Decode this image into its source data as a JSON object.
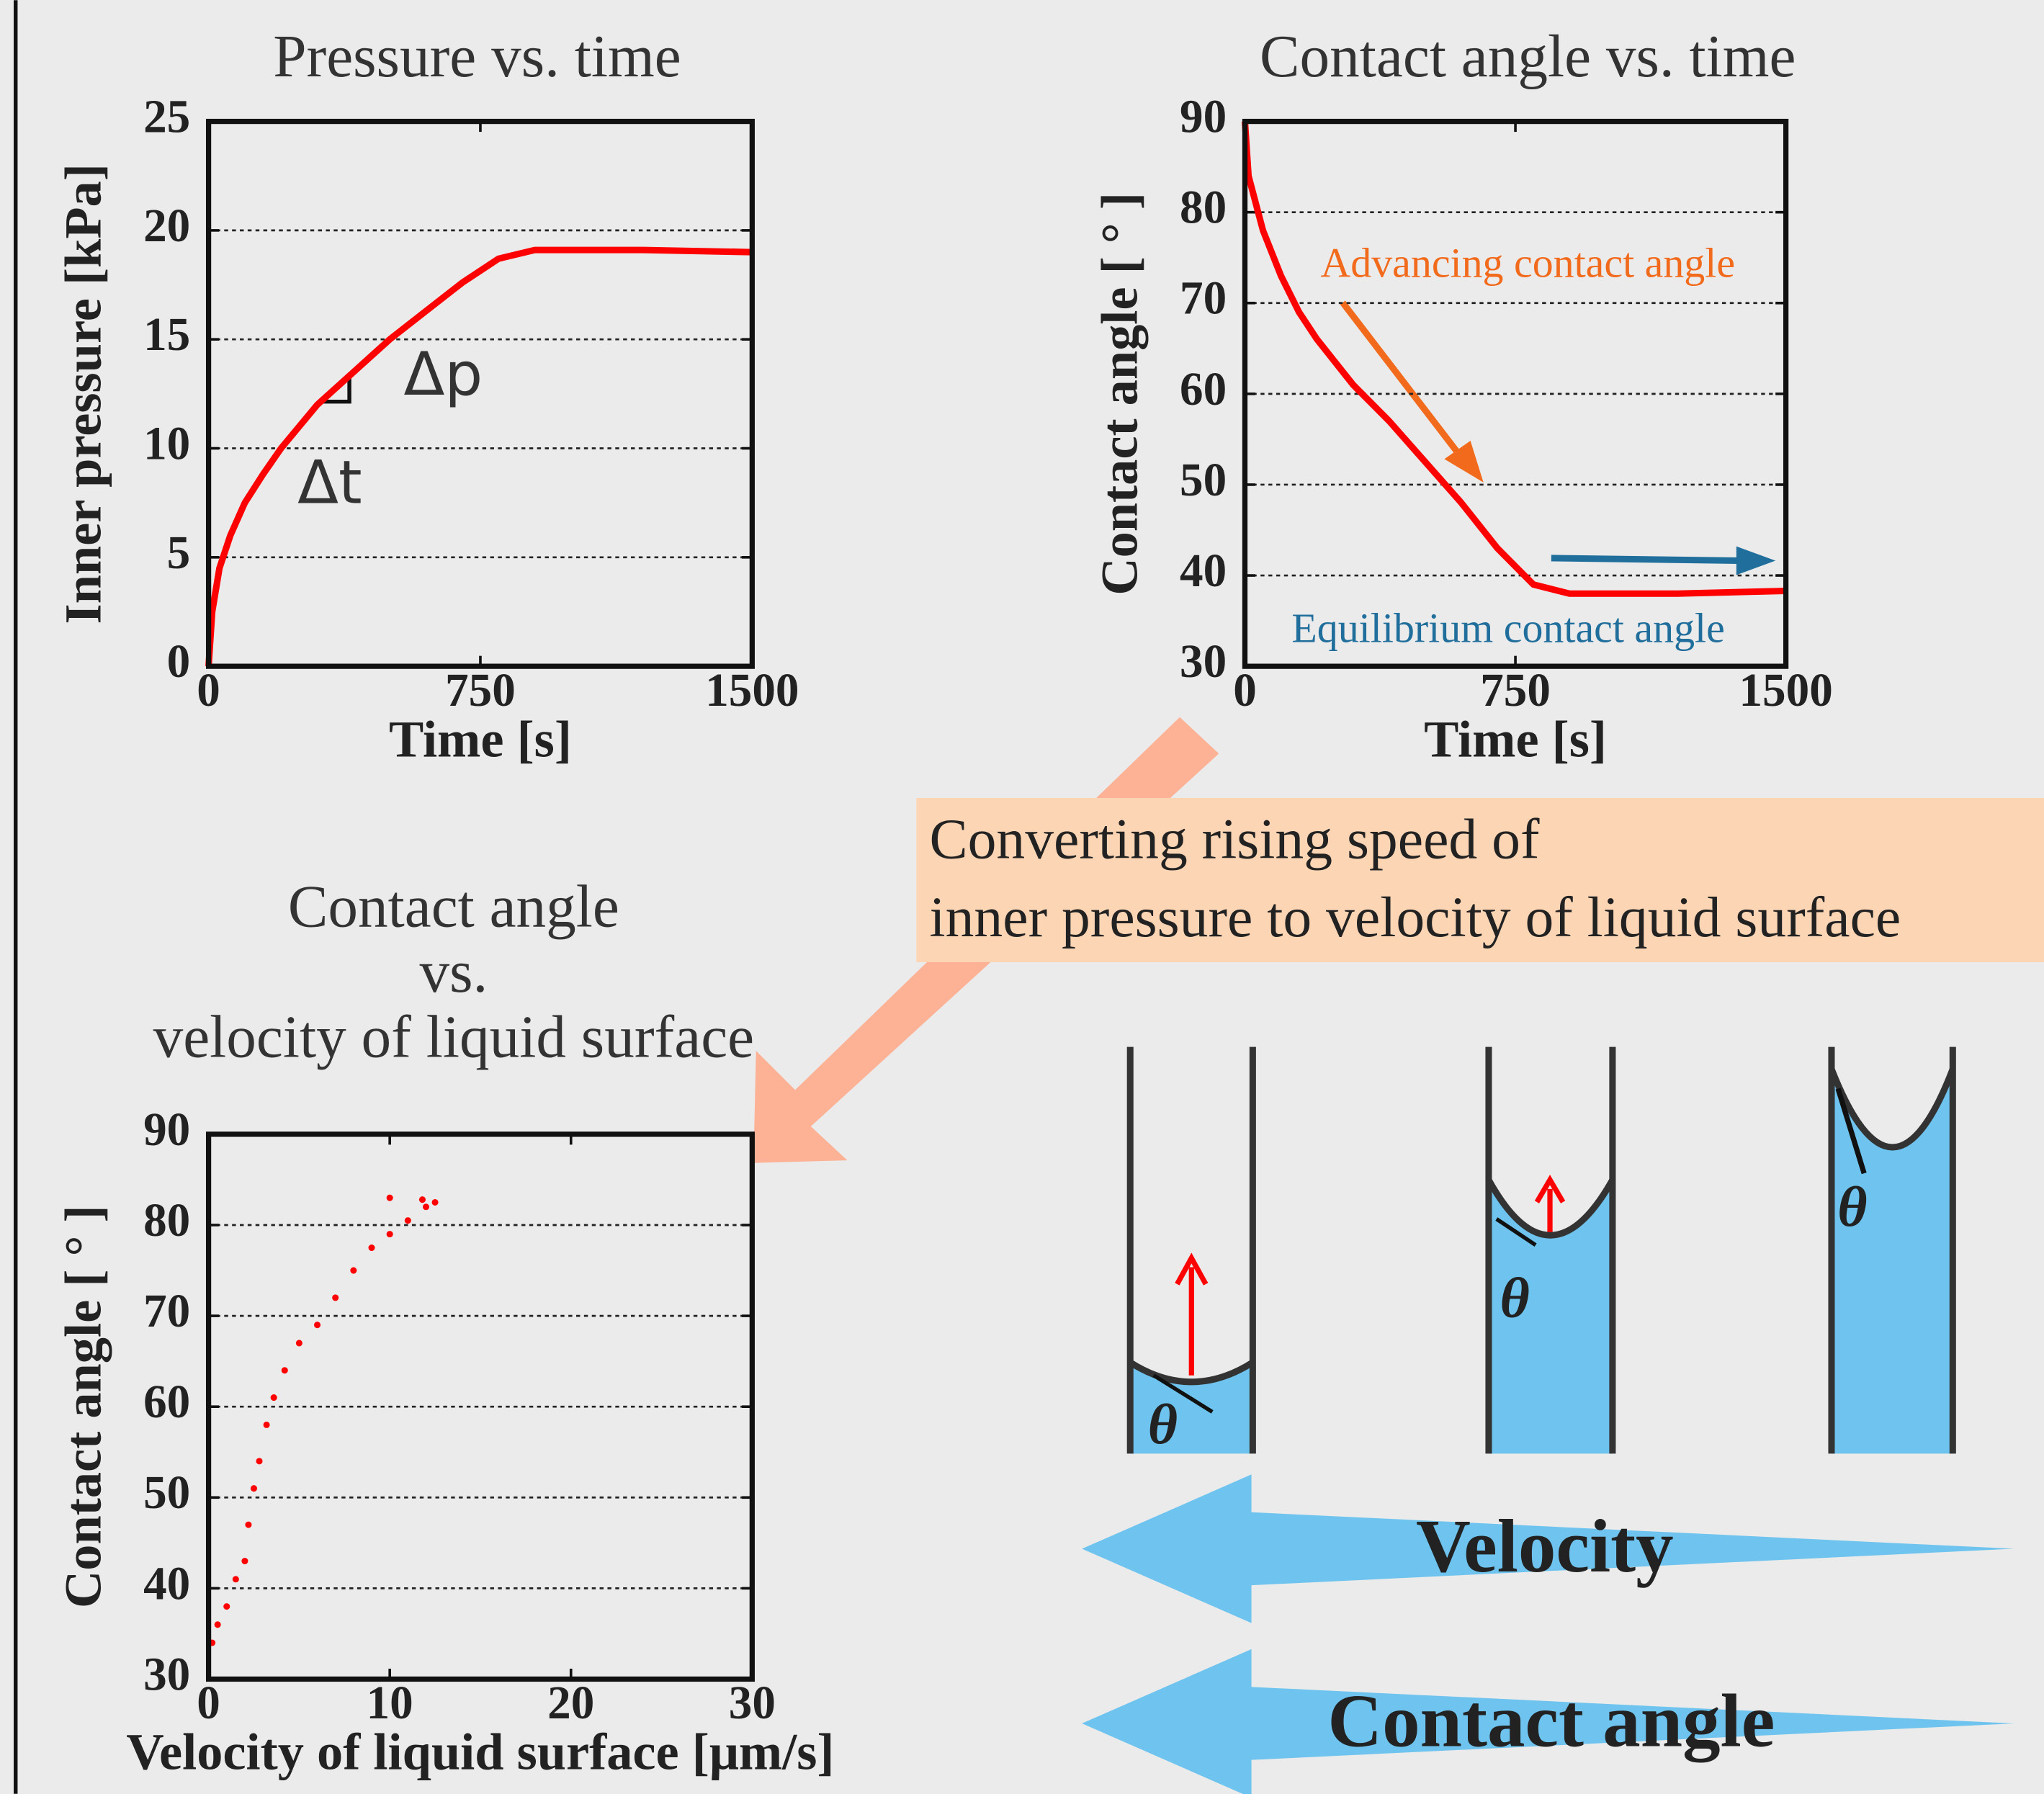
{
  "chart_data": [
    {
      "type": "line",
      "title": "Pressure vs. time",
      "xlabel": "Time [s]",
      "ylabel": "Inner pressure [kPa]",
      "x": [
        0,
        10,
        30,
        60,
        100,
        150,
        200,
        250,
        300,
        400,
        500,
        600,
        700,
        800,
        900,
        1000,
        1200,
        1500
      ],
      "values": [
        0,
        2.5,
        4.5,
        6,
        7.5,
        8.8,
        10,
        11,
        12,
        13.5,
        15,
        16.3,
        17.6,
        18.7,
        19.1,
        19.1,
        19.1,
        19.0
      ],
      "color": "#ff0000",
      "xlim": [
        0,
        1500
      ],
      "xticks": [
        0,
        750,
        1500
      ],
      "ylim": [
        0,
        25
      ],
      "yticks": [
        0,
        5,
        10,
        15,
        20,
        25
      ],
      "grid": true,
      "annotations": [
        {
          "text": "Δp",
          "color": "#333333"
        },
        {
          "text": "Δt",
          "color": "#333333"
        }
      ]
    },
    {
      "type": "line",
      "title": "Contact angle vs. time",
      "xlabel": "Time [s]",
      "ylabel": "Contact angle [ ° ]",
      "x": [
        0,
        10,
        50,
        100,
        150,
        200,
        300,
        400,
        500,
        600,
        700,
        800,
        900,
        1000,
        1200,
        1500
      ],
      "values": [
        90,
        84,
        78,
        73,
        69,
        66,
        61,
        57,
        52.5,
        48,
        43,
        39,
        38,
        38,
        38,
        38.3
      ],
      "color": "#ff0000",
      "xlim": [
        0,
        1500
      ],
      "xticks": [
        0,
        750,
        1500
      ],
      "ylim": [
        30,
        90
      ],
      "yticks": [
        30,
        40,
        50,
        60,
        70,
        80,
        90
      ],
      "grid": true,
      "annotations": [
        {
          "text": "Advancing contact angle",
          "color": "#f26b1d"
        },
        {
          "text": "Equilibrium contact angle",
          "color": "#1f6e9c"
        }
      ]
    },
    {
      "type": "scatter",
      "title": [
        "Contact angle",
        "vs.",
        "velocity of liquid surface"
      ],
      "xlabel": "Velocity of liquid surface [μm/s]",
      "ylabel": "Contact angle [ ° ]",
      "x": [
        0.2,
        0.5,
        1,
        1.5,
        2,
        2.2,
        2.5,
        2.8,
        3.2,
        3.6,
        4.2,
        5,
        6,
        7,
        8,
        9,
        10,
        11,
        12,
        12.5,
        10,
        11.8
      ],
      "values": [
        34,
        36,
        38,
        41,
        43,
        47,
        51,
        54,
        58,
        61,
        64,
        67,
        69,
        72,
        75,
        77.5,
        79,
        80.5,
        82,
        82.5,
        83,
        82.8
      ],
      "color": "#ff0000",
      "xlim": [
        0,
        30
      ],
      "xticks": [
        0,
        10,
        20,
        30
      ],
      "ylim": [
        30,
        90
      ],
      "yticks": [
        30,
        40,
        50,
        60,
        70,
        80,
        90
      ],
      "grid": true
    }
  ],
  "diagram": {
    "note": [
      "Converting rising speed of",
      "inner pressure to velocity of liquid surface"
    ],
    "theta": "θ",
    "arrows": [
      "Velocity",
      "Contact angle"
    ]
  }
}
